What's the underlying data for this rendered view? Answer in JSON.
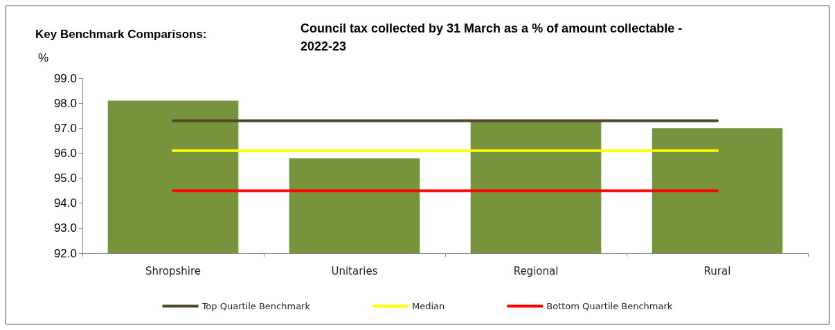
{
  "chart_data": {
    "type": "bar",
    "title": "Council tax collected by 31 March as a % of amount collectable -\n2022-23",
    "annotations": [
      "Key Benchmark Comparisons:"
    ],
    "ylabel": "%",
    "categories": [
      "Shropshire",
      "Unitaries",
      "Regional",
      "Rural"
    ],
    "series": [
      {
        "color": "#77933c",
        "values": [
          98.1,
          95.8,
          97.3,
          97.0
        ]
      },
      {
        "type": "line",
        "name": "Top Quartile Benchmark",
        "color": "#4f462c",
        "values": [
          97.3,
          97.3,
          97.3,
          97.3
        ]
      },
      {
        "type": "line",
        "name": "Median",
        "color": "#ffff00",
        "values": [
          96.1,
          96.1,
          96.1,
          96.1
        ]
      },
      {
        "type": "line",
        "name": "Bottom Quartile Benchmark",
        "color": "#ff0000",
        "values": [
          94.5,
          94.5,
          94.5,
          94.5
        ]
      }
    ],
    "ylim": [
      92,
      99
    ],
    "yticks": [
      {
        "value": 92,
        "label": "92.0"
      },
      {
        "value": 93,
        "label": "93.0"
      },
      {
        "value": 94,
        "label": "94.0"
      },
      {
        "value": 95,
        "label": "95.0"
      },
      {
        "value": 96,
        "label": "96.0"
      },
      {
        "value": 97,
        "label": "97.0"
      },
      {
        "value": 98,
        "label": "98.0"
      },
      {
        "value": 99,
        "label": "99.0"
      }
    ],
    "grid": false,
    "legend": "bottom",
    "marker": "none",
    "line_style": "solid"
  }
}
